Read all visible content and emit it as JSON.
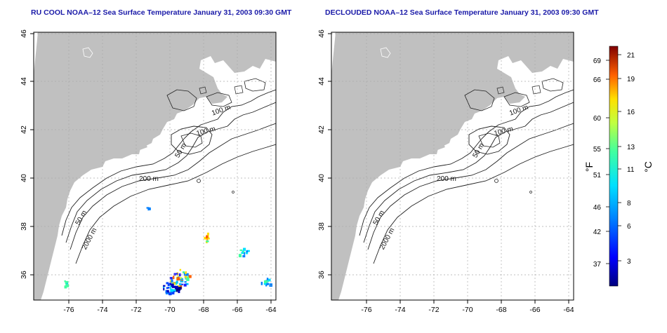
{
  "left_title": "RU COOL NOAA–12 Sea Surface Temperature January 31, 2003 09:30 GMT",
  "right_title": "DECLOUDED NOAA–12 Sea Surface Temperature January 31, 2003 09:30 GMT",
  "lat_ticks": [
    "36",
    "38",
    "40",
    "42",
    "44",
    "46"
  ],
  "lon_ticks": [
    "-76",
    "-74",
    "-72",
    "-70",
    "-68",
    "-66",
    "-64"
  ],
  "contour_labels": [
    "100 m",
    "100 m",
    "50 m",
    "200 m",
    "50 m",
    "2000 m"
  ],
  "colorbar": {
    "f_label": "°F",
    "c_label": "°C",
    "f_ticks": [
      "69",
      "66",
      "60",
      "55",
      "51",
      "46",
      "42",
      "37"
    ],
    "c_ticks": [
      "21",
      "19",
      "16",
      "13",
      "11",
      "8",
      "6",
      "3"
    ]
  },
  "colors": {
    "land": "#c0c0c0",
    "title": "#1a1aa8",
    "grid": "#aaaaaa"
  }
}
